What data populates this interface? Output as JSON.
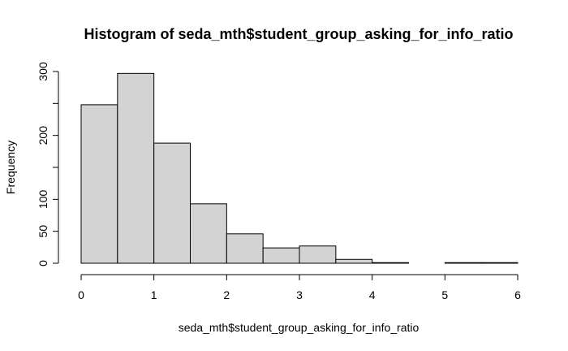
{
  "chart_data": {
    "type": "histogram",
    "title": "Histogram of seda_mth$student_group_asking_for_info_ratio",
    "xlabel": "seda_mth$student_group_asking_for_info_ratio",
    "ylabel": "Frequency",
    "bin_edges": [
      0,
      0.5,
      1,
      1.5,
      2,
      2.5,
      3,
      3.5,
      4,
      4.5,
      5,
      5.5,
      6
    ],
    "counts": [
      248,
      297,
      188,
      93,
      46,
      24,
      27,
      6,
      1,
      0,
      1,
      1
    ],
    "x_ticks": [
      "0",
      "1",
      "2",
      "3",
      "4",
      "5",
      "6"
    ],
    "y_ticks": [
      "0",
      "50",
      "100",
      "200",
      "300"
    ],
    "xlim": [
      0,
      6
    ],
    "ylim": [
      0,
      300
    ],
    "grid": false,
    "bar_fill": "#d3d3d3",
    "bar_stroke": "#000000"
  }
}
